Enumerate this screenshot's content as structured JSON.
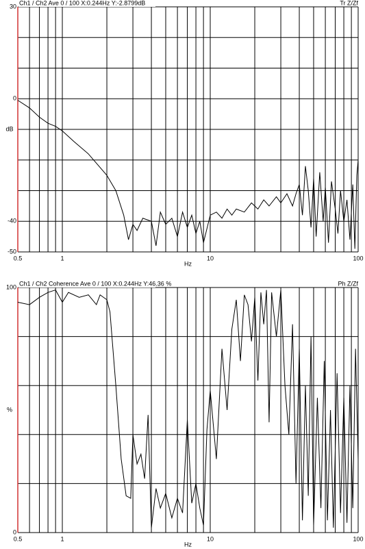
{
  "chart_data": [
    {
      "type": "line",
      "title": "Ch1 / Ch2  Ave 0 / 100  X:0.244Hz  Y:-2.8799dB",
      "title_right": "Tr Z/Zf",
      "ylabel": "dB",
      "xlabel": "Hz",
      "log_x": true,
      "xlim": [
        0.5,
        100
      ],
      "ylim": [
        -50,
        30
      ],
      "xticks": [
        0.5,
        1,
        10,
        100
      ],
      "yticks": [
        30,
        0,
        -40,
        -50
      ],
      "xgrid": [
        0.6,
        0.7,
        0.8,
        0.9,
        1,
        2,
        3,
        4,
        5,
        6,
        7,
        8,
        9,
        10,
        20,
        30,
        40,
        50,
        60,
        70,
        80,
        90,
        100
      ],
      "ygrid": [
        30,
        20,
        10,
        0,
        -10,
        -20,
        -30,
        -40,
        -50
      ],
      "x": [
        0.5,
        0.6,
        0.7,
        0.8,
        0.9,
        1.0,
        1.2,
        1.5,
        2.0,
        2.3,
        2.6,
        2.8,
        3.0,
        3.2,
        3.5,
        4,
        4.3,
        4.6,
        5,
        5.5,
        6,
        6.5,
        7,
        7.5,
        8,
        8.5,
        9,
        10,
        11,
        12,
        13,
        14,
        15,
        17,
        19,
        21,
        23,
        25,
        28,
        30,
        33,
        36,
        38,
        40,
        42,
        44,
        46,
        48,
        50,
        52,
        55,
        58,
        60,
        63,
        66,
        70,
        73,
        76,
        80,
        84,
        88,
        92,
        95,
        98,
        100
      ],
      "series": [
        {
          "color": "#000000",
          "values": [
            -0.5,
            -3,
            -6,
            -8,
            -9,
            -10.5,
            -14,
            -18,
            -25,
            -30,
            -38,
            -46,
            -41,
            -43,
            -39,
            -40,
            -48,
            -37,
            -41,
            -39,
            -45,
            -37,
            -42,
            -38,
            -44,
            -40,
            -47,
            -38,
            -37,
            -39,
            -36,
            -38,
            -36,
            -37,
            -34,
            -36,
            -33,
            -35,
            -32,
            -34,
            -31,
            -35,
            -31,
            -28,
            -38,
            -22,
            -30,
            -42,
            -26,
            -45,
            -24,
            -40,
            -29,
            -47,
            -27,
            -36,
            -44,
            -30,
            -40,
            -33,
            -46,
            -28,
            -49,
            -25,
            -20
          ]
        }
      ]
    },
    {
      "type": "line",
      "title": "Ch1 / Ch2  Coherence Ave 0 / 100  X:0.244Hz  Y:46.36 %",
      "title_right": "Ph Z/Zf",
      "ylabel": "%",
      "xlabel": "Hz",
      "log_x": true,
      "xlim": [
        0.5,
        100
      ],
      "ylim": [
        0,
        100
      ],
      "xticks": [
        0.5,
        1,
        10,
        100
      ],
      "yticks": [
        100,
        0
      ],
      "xgrid": [
        0.6,
        0.7,
        0.8,
        0.9,
        1,
        2,
        3,
        4,
        5,
        6,
        7,
        8,
        9,
        10,
        20,
        30,
        40,
        50,
        60,
        70,
        80,
        90,
        100
      ],
      "ygrid": [
        100,
        80,
        60,
        40,
        20,
        0
      ],
      "x": [
        0.5,
        0.6,
        0.7,
        0.8,
        0.9,
        1.0,
        1.1,
        1.3,
        1.5,
        1.7,
        1.8,
        2.0,
        2.1,
        2.3,
        2.5,
        2.7,
        2.9,
        3.0,
        3.2,
        3.4,
        3.6,
        3.8,
        4.0,
        4.3,
        4.6,
        5.0,
        5.5,
        6.0,
        6.5,
        7.0,
        7.5,
        8.0,
        8.5,
        9.0,
        9.5,
        10,
        11,
        12,
        13,
        14,
        15,
        16,
        17,
        18,
        19,
        20,
        21,
        22,
        23,
        24,
        25,
        26,
        28,
        30,
        32,
        34,
        36,
        38,
        40,
        42,
        44,
        46,
        48,
        50,
        53,
        56,
        59,
        62,
        65,
        68,
        72,
        76,
        80,
        84,
        88,
        92,
        96,
        100
      ],
      "series": [
        {
          "color": "#000000",
          "values": [
            94,
            93,
            96,
            98,
            99,
            94,
            98,
            96,
            97,
            93,
            97,
            95,
            90,
            60,
            30,
            15,
            14,
            40,
            28,
            32,
            22,
            48,
            2,
            18,
            10,
            16,
            6,
            14,
            8,
            46,
            12,
            20,
            10,
            3,
            42,
            58,
            30,
            75,
            50,
            83,
            95,
            70,
            97,
            93,
            78,
            96,
            62,
            98,
            85,
            99,
            45,
            98,
            80,
            99,
            60,
            40,
            85,
            20,
            75,
            5,
            60,
            15,
            80,
            3,
            55,
            10,
            70,
            5,
            50,
            2,
            65,
            8,
            55,
            4,
            60,
            10,
            75,
            30
          ]
        }
      ]
    }
  ]
}
